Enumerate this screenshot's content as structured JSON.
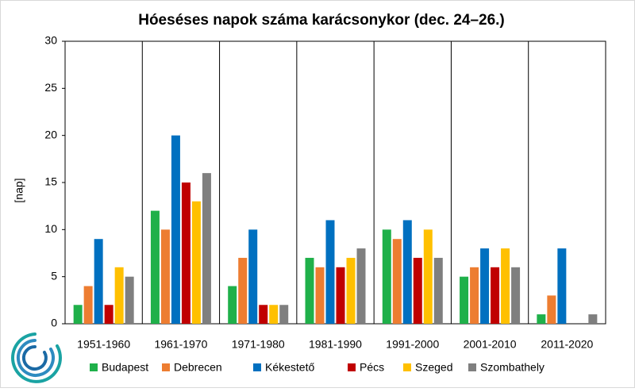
{
  "chart_data": {
    "type": "bar",
    "title": "Hóeséses napok száma karácsonykor (dec. 24–26.)",
    "y_label": "[nap]",
    "categories": [
      "1951-1960",
      "1961-1970",
      "1971-1980",
      "1981-1990",
      "1991-2000",
      "2001-2010",
      "2011-2020"
    ],
    "series": [
      {
        "name": "Budapest",
        "color": "#1fb04a",
        "values": [
          2,
          12,
          4,
          7,
          10,
          5,
          1
        ]
      },
      {
        "name": "Debrecen",
        "color": "#ed7d31",
        "values": [
          4,
          10,
          7,
          6,
          9,
          6,
          3
        ]
      },
      {
        "name": "Kékestető",
        "color": "#0070c0",
        "values": [
          9,
          20,
          10,
          11,
          11,
          8,
          8
        ]
      },
      {
        "name": "Pécs",
        "color": "#c00000",
        "values": [
          2,
          15,
          2,
          6,
          7,
          6,
          0
        ]
      },
      {
        "name": "Szeged",
        "color": "#ffc000",
        "values": [
          6,
          13,
          2,
          7,
          10,
          8,
          0
        ]
      },
      {
        "name": "Szombathely",
        "color": "#7f7f7f",
        "values": [
          5,
          16,
          2,
          8,
          7,
          6,
          1
        ]
      }
    ],
    "ylim": [
      0,
      30
    ],
    "yticks": [
      0,
      5,
      10,
      15,
      20,
      25,
      30
    ],
    "grid": false,
    "legend": "bottom"
  }
}
